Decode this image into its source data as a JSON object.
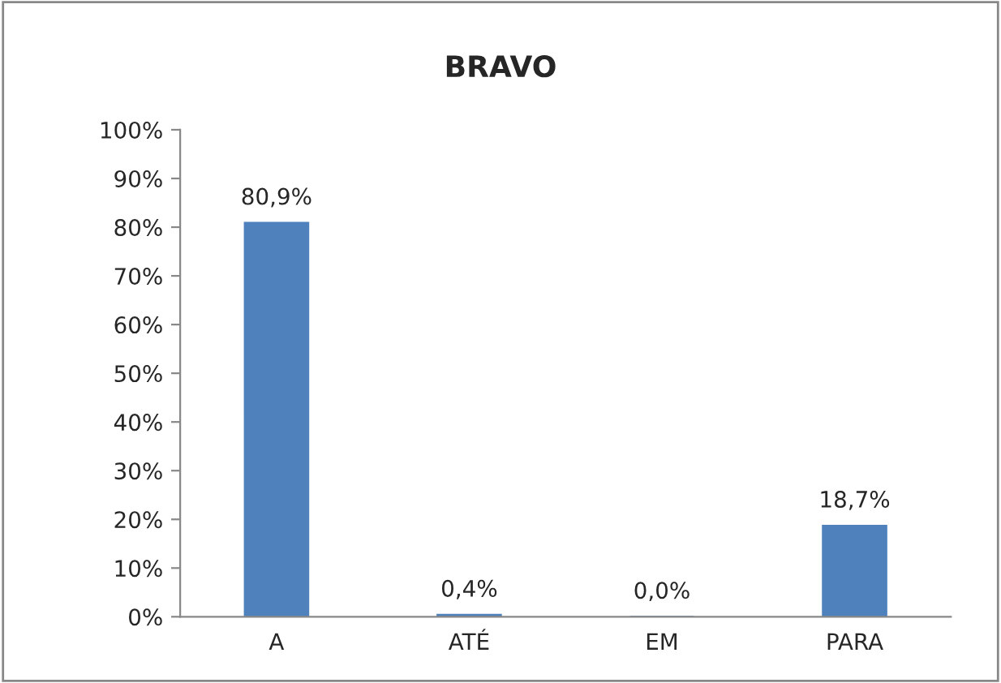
{
  "chart_data": {
    "type": "bar",
    "title": "BRAVO",
    "categories": [
      "A",
      "ATÉ",
      "EM",
      "PARA"
    ],
    "values": [
      80.9,
      0.4,
      0.0,
      18.7
    ],
    "value_labels": [
      "80,9%",
      "0,4%",
      "0,0%",
      "18,7%"
    ],
    "color": "#4f81bd",
    "ylim": [
      0,
      100
    ],
    "yticks": [
      {
        "value": 0,
        "label": "0%"
      },
      {
        "value": 10,
        "label": "10%"
      },
      {
        "value": 20,
        "label": "20%"
      },
      {
        "value": 30,
        "label": "30%"
      },
      {
        "value": 40,
        "label": "40%"
      },
      {
        "value": 50,
        "label": "50%"
      },
      {
        "value": 60,
        "label": "60%"
      },
      {
        "value": 70,
        "label": "70%"
      },
      {
        "value": 80,
        "label": "80%"
      },
      {
        "value": 90,
        "label": "90%"
      },
      {
        "value": 100,
        "label": "100%"
      }
    ],
    "grid": false,
    "legend": false
  }
}
